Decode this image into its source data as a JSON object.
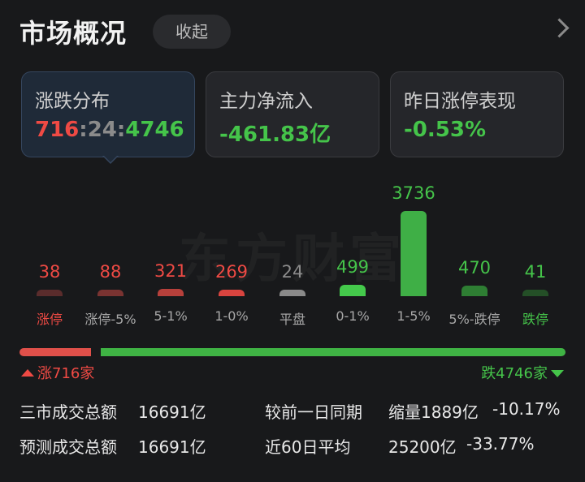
{
  "header": {
    "title": "市场概况",
    "collapse_label": "收起"
  },
  "cards": [
    {
      "label": "涨跌分布",
      "value_up": "716",
      "value_flat": "24",
      "value_down": "4746",
      "sep": ":"
    },
    {
      "label": "主力净流入",
      "value": "-461.83亿"
    },
    {
      "label": "昨日涨停表现",
      "value": "-0.53%"
    }
  ],
  "watermark": "东方财富",
  "chart_data": {
    "type": "bar",
    "categories": [
      "涨停",
      "涨停-5%",
      "5-1%",
      "1-0%",
      "平盘",
      "0-1%",
      "1-5%",
      "5%-跌停",
      "跌停"
    ],
    "values": [
      38,
      88,
      321,
      269,
      24,
      499,
      3736,
      470,
      41
    ],
    "bar_colors": [
      "#5a2c2c",
      "#7a3331",
      "#b7403b",
      "#d9443f",
      "#8a8a8a",
      "#44c94b",
      "#3faf46",
      "#2e7e33",
      "#244f27"
    ],
    "count_colors": [
      "#ef4a44",
      "#ef4a44",
      "#ef4a44",
      "#ef4a44",
      "#8b8b8b",
      "#45c44a",
      "#45c44a",
      "#45c44a",
      "#45c44a"
    ],
    "label_colors": [
      "#ef4a44",
      "#a8a8a8",
      "#a8a8a8",
      "#a8a8a8",
      "#a8a8a8",
      "#a8a8a8",
      "#a8a8a8",
      "#a8a8a8",
      "#45c44a"
    ]
  },
  "ratio": {
    "up": 716,
    "down": 4746,
    "up_label": "涨716家",
    "down_label": "跌4746家"
  },
  "stats": {
    "total_label": "三市成交总额",
    "total_value": "16691亿",
    "compare_label": "较前一日同期",
    "compare_value": "缩量1889亿",
    "compare_pct": "-10.17%",
    "forecast_label": "预测成交总额",
    "forecast_value": "16691亿",
    "avg_label": "近60日平均",
    "avg_value": "25200亿",
    "avg_pct": "-33.77%"
  }
}
